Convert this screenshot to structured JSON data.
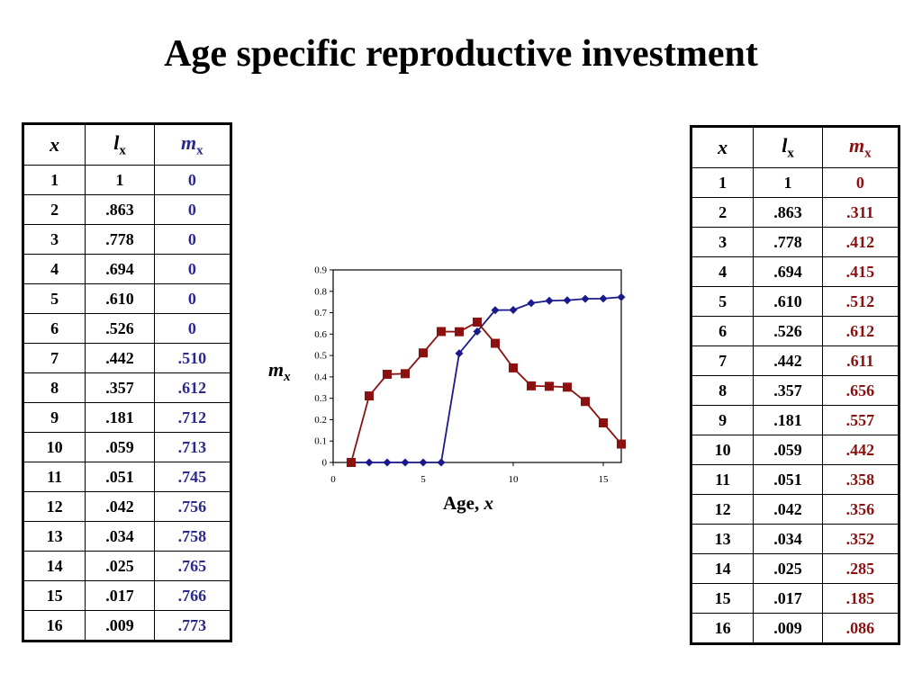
{
  "page": {
    "title": "Age specific reproductive investment"
  },
  "table_left": {
    "headers": {
      "x": "x",
      "l": "l",
      "l_sub": "x",
      "m": "m",
      "m_sub": "x"
    },
    "rows": [
      {
        "x": "1",
        "l": "1",
        "m": "0"
      },
      {
        "x": "2",
        "l": ".863",
        "m": "0"
      },
      {
        "x": "3",
        "l": ".778",
        "m": "0"
      },
      {
        "x": "4",
        "l": ".694",
        "m": "0"
      },
      {
        "x": "5",
        "l": ".610",
        "m": "0"
      },
      {
        "x": "6",
        "l": ".526",
        "m": "0"
      },
      {
        "x": "7",
        "l": ".442",
        "m": ".510"
      },
      {
        "x": "8",
        "l": ".357",
        "m": ".612"
      },
      {
        "x": "9",
        "l": ".181",
        "m": ".712"
      },
      {
        "x": "10",
        "l": ".059",
        "m": ".713"
      },
      {
        "x": "11",
        "l": ".051",
        "m": ".745"
      },
      {
        "x": "12",
        "l": ".042",
        "m": ".756"
      },
      {
        "x": "13",
        "l": ".034",
        "m": ".758"
      },
      {
        "x": "14",
        "l": ".025",
        "m": ".765"
      },
      {
        "x": "15",
        "l": ".017",
        "m": ".766"
      },
      {
        "x": "16",
        "l": ".009",
        "m": ".773"
      }
    ],
    "m_color": "#2b2a8c"
  },
  "table_right": {
    "headers": {
      "x": "x",
      "l": "l",
      "l_sub": "x",
      "m": "m",
      "m_sub": "x"
    },
    "rows": [
      {
        "x": "1",
        "l": "1",
        "m": "0"
      },
      {
        "x": "2",
        "l": ".863",
        "m": ".311"
      },
      {
        "x": "3",
        "l": ".778",
        "m": ".412"
      },
      {
        "x": "4",
        "l": ".694",
        "m": ".415"
      },
      {
        "x": "5",
        "l": ".610",
        "m": ".512"
      },
      {
        "x": "6",
        "l": ".526",
        "m": ".612"
      },
      {
        "x": "7",
        "l": ".442",
        "m": ".611"
      },
      {
        "x": "8",
        "l": ".357",
        "m": ".656"
      },
      {
        "x": "9",
        "l": ".181",
        "m": ".557"
      },
      {
        "x": "10",
        "l": ".059",
        "m": ".442"
      },
      {
        "x": "11",
        "l": ".051",
        "m": ".358"
      },
      {
        "x": "12",
        "l": ".042",
        "m": ".356"
      },
      {
        "x": "13",
        "l": ".034",
        "m": ".352"
      },
      {
        "x": "14",
        "l": ".025",
        "m": ".285"
      },
      {
        "x": "15",
        "l": ".017",
        "m": ".185"
      },
      {
        "x": "16",
        "l": ".009",
        "m": ".086"
      }
    ],
    "m_color": "#8b1010"
  },
  "chart_data": {
    "type": "line",
    "title": "",
    "xlabel": "Age, ",
    "xlabel_var": "x",
    "ylabel": "m",
    "ylabel_sub": "x",
    "xlim": [
      0,
      16
    ],
    "ylim": [
      0,
      0.9
    ],
    "xticks": [
      0,
      5,
      10,
      15
    ],
    "yticks": [
      0,
      0.1,
      0.2,
      0.3,
      0.4,
      0.5,
      0.6,
      0.7,
      0.8,
      0.9
    ],
    "grid": false,
    "legend": "none",
    "x": [
      1,
      2,
      3,
      4,
      5,
      6,
      7,
      8,
      9,
      10,
      11,
      12,
      13,
      14,
      15,
      16
    ],
    "series": [
      {
        "values": [
          0,
          0,
          0,
          0,
          0,
          0,
          0.51,
          0.612,
          0.712,
          0.713,
          0.745,
          0.756,
          0.758,
          0.765,
          0.766,
          0.773
        ],
        "color": "#1a1a8c",
        "marker": "diamond"
      },
      {
        "values": [
          0,
          0.311,
          0.412,
          0.415,
          0.512,
          0.612,
          0.611,
          0.656,
          0.557,
          0.442,
          0.358,
          0.356,
          0.352,
          0.285,
          0.185,
          0.086
        ],
        "color": "#8b1010",
        "marker": "square"
      }
    ]
  }
}
